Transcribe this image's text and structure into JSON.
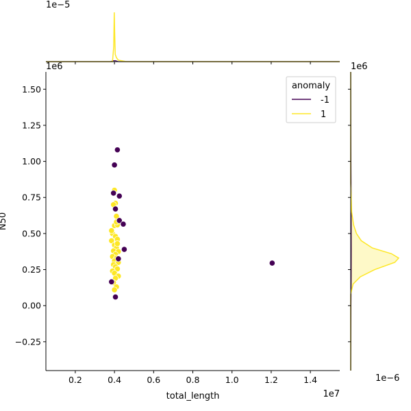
{
  "chart_data": {
    "type": "scatter",
    "title": "",
    "xlabel": "total_length",
    "ylabel": "N50",
    "x_offset_text": "1e7",
    "y_offset_text": "1e6",
    "top_marginal_offset_text": "1e−5",
    "right_marginal_offset_text_top": "1e6",
    "right_marginal_offset_text_bottom": "1e−6",
    "xlim": [
      500000,
      15500000
    ],
    "ylim": [
      -450000,
      1620000
    ],
    "x_ticks": [
      2000000,
      4000000,
      6000000,
      8000000,
      10000000,
      12000000,
      14000000
    ],
    "x_tick_labels": [
      "0.2",
      "0.4",
      "0.6",
      "0.8",
      "1.0",
      "1.2",
      "1.4"
    ],
    "y_ticks": [
      -250000,
      0,
      250000,
      500000,
      750000,
      1000000,
      1250000,
      1500000
    ],
    "y_tick_labels": [
      "−0.25",
      "0.00",
      "0.25",
      "0.50",
      "0.75",
      "1.00",
      "1.25",
      "1.50"
    ],
    "legend": {
      "title": "anomaly",
      "placement": "top-right",
      "entries": [
        {
          "label": "-1",
          "color": "#440154"
        },
        {
          "label": "1",
          "color": "#fde725"
        }
      ]
    },
    "series": [
      {
        "name": "-1",
        "color": "#440154",
        "points": [
          {
            "x": 4150000,
            "y": 1080000
          },
          {
            "x": 4000000,
            "y": 975000
          },
          {
            "x": 3950000,
            "y": 780000
          },
          {
            "x": 4250000,
            "y": 760000
          },
          {
            "x": 4050000,
            "y": 670000
          },
          {
            "x": 4250000,
            "y": 590000
          },
          {
            "x": 4450000,
            "y": 565000
          },
          {
            "x": 4500000,
            "y": 390000
          },
          {
            "x": 4200000,
            "y": 325000
          },
          {
            "x": 3850000,
            "y": 165000
          },
          {
            "x": 4050000,
            "y": 60000
          },
          {
            "x": 12050000,
            "y": 295000
          }
        ]
      },
      {
        "name": "1",
        "color": "#fde725",
        "points": [
          {
            "x": 4000000,
            "y": 800000
          },
          {
            "x": 4050000,
            "y": 710000
          },
          {
            "x": 3950000,
            "y": 700000
          },
          {
            "x": 4100000,
            "y": 620000
          },
          {
            "x": 4000000,
            "y": 555000
          },
          {
            "x": 4150000,
            "y": 560000
          },
          {
            "x": 3900000,
            "y": 500000
          },
          {
            "x": 4050000,
            "y": 480000
          },
          {
            "x": 3850000,
            "y": 450000
          },
          {
            "x": 4150000,
            "y": 460000
          },
          {
            "x": 4000000,
            "y": 420000
          },
          {
            "x": 4100000,
            "y": 400000
          },
          {
            "x": 3950000,
            "y": 380000
          },
          {
            "x": 4200000,
            "y": 375000
          },
          {
            "x": 4050000,
            "y": 355000
          },
          {
            "x": 3900000,
            "y": 340000
          },
          {
            "x": 4100000,
            "y": 330000
          },
          {
            "x": 4000000,
            "y": 310000
          },
          {
            "x": 4200000,
            "y": 300000
          },
          {
            "x": 3950000,
            "y": 285000
          },
          {
            "x": 4050000,
            "y": 270000
          },
          {
            "x": 4150000,
            "y": 255000
          },
          {
            "x": 3900000,
            "y": 240000
          },
          {
            "x": 4000000,
            "y": 225000
          },
          {
            "x": 4200000,
            "y": 205000
          },
          {
            "x": 4050000,
            "y": 190000
          },
          {
            "x": 3950000,
            "y": 160000
          },
          {
            "x": 4100000,
            "y": 130000
          },
          {
            "x": 4000000,
            "y": 110000
          },
          {
            "x": 4150000,
            "y": 430000
          },
          {
            "x": 3850000,
            "y": 520000
          },
          {
            "x": 4100000,
            "y": 580000
          }
        ]
      }
    ],
    "marginal_top": {
      "type": "kde",
      "series": [
        {
          "name": "-1",
          "color": "#440154",
          "x": [
            500000,
            3800000,
            3950000,
            4050000,
            4200000,
            15500000
          ],
          "density": [
            0,
            0.0,
            0.02,
            0.02,
            0.0,
            0
          ]
        },
        {
          "name": "1",
          "color": "#fde725",
          "x": [
            500000,
            3900000,
            3960000,
            3990000,
            4010000,
            4040000,
            4100000,
            4200000,
            4600000,
            15500000
          ],
          "density": [
            0,
            0.0,
            0.3,
            1.0,
            0.6,
            0.15,
            0.08,
            0.03,
            0.0,
            0
          ]
        }
      ]
    },
    "marginal_right": {
      "type": "kde",
      "series": [
        {
          "name": "-1",
          "color": "#440154",
          "y": [
            -450000,
            0,
            200000,
            400000,
            600000,
            800000,
            1000000,
            1200000,
            1620000
          ],
          "density": [
            0,
            0.005,
            0.01,
            0.012,
            0.01,
            0.008,
            0.006,
            0.003,
            0
          ]
        },
        {
          "name": "1",
          "color": "#fde725",
          "y": [
            -450000,
            80000,
            150000,
            200000,
            250000,
            300000,
            330000,
            360000,
            400000,
            450000,
            500000,
            560000,
            650000,
            850000,
            1620000
          ],
          "density": [
            0,
            0.0,
            0.05,
            0.2,
            0.5,
            0.92,
            1.0,
            0.85,
            0.45,
            0.22,
            0.12,
            0.06,
            0.02,
            0.0,
            0
          ]
        }
      ]
    }
  }
}
